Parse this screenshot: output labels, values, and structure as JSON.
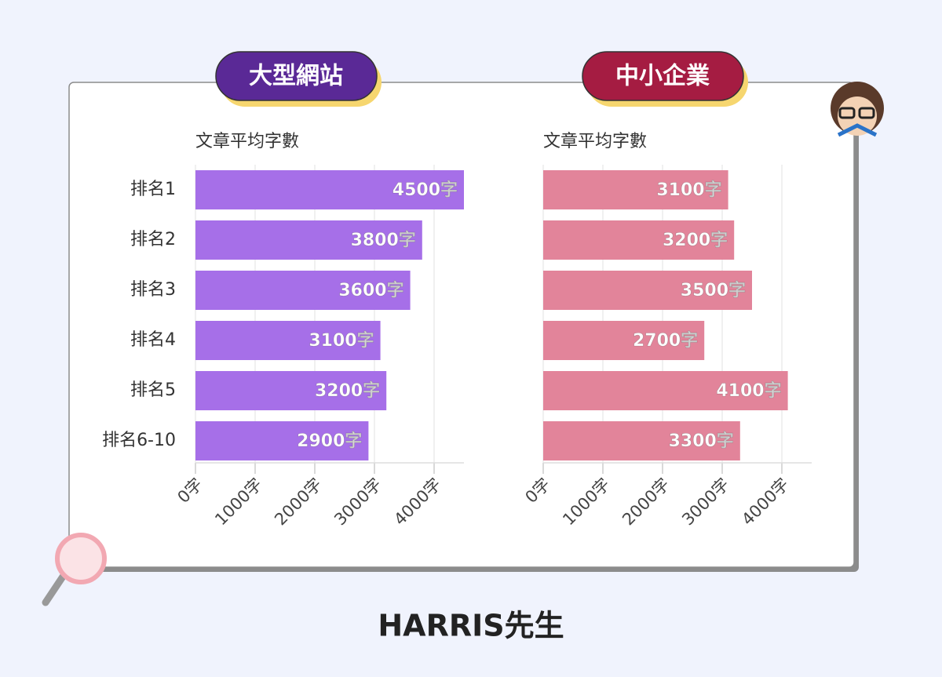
{
  "chart_data": [
    {
      "type": "bar",
      "orientation": "horizontal",
      "title": "大型網站",
      "subtitle": "文章平均字數",
      "categories": [
        "排名1",
        "排名2",
        "排名3",
        "排名4",
        "排名5",
        "排名6-10"
      ],
      "values": [
        4500,
        3800,
        3600,
        3100,
        3200,
        2900
      ],
      "value_labels": [
        "4500字",
        "3800字",
        "3600字",
        "3100字",
        "3200字",
        "2900字"
      ],
      "color": "#a66fe8",
      "title_color": "#5a2996",
      "xlim": [
        0,
        4500
      ],
      "xticks": [
        {
          "value": 0,
          "label": "0字"
        },
        {
          "value": 1000,
          "label": "1000字"
        },
        {
          "value": 2000,
          "label": "2000字"
        },
        {
          "value": 3000,
          "label": "3000字"
        },
        {
          "value": 4000,
          "label": "4000字"
        }
      ],
      "grid": true
    },
    {
      "type": "bar",
      "orientation": "horizontal",
      "title": "中小企業",
      "subtitle": "文章平均字數",
      "categories": [
        null,
        null,
        null,
        null,
        null,
        null
      ],
      "values": [
        3100,
        3200,
        3500,
        2700,
        4100,
        3300
      ],
      "value_labels": [
        "3100字",
        "3200字",
        "3500字",
        "2700字",
        "4100字",
        "3300字"
      ],
      "color": "#e2849a",
      "title_color": "#a51c42",
      "xlim": [
        0,
        4500
      ],
      "xticks": [
        {
          "value": 0,
          "label": "0字"
        },
        {
          "value": 1000,
          "label": "1000字"
        },
        {
          "value": 2000,
          "label": "2000字"
        },
        {
          "value": 3000,
          "label": "3000字"
        },
        {
          "value": 4000,
          "label": "4000字"
        }
      ],
      "grid": true
    }
  ],
  "footer": {
    "brand": "HARRIS先生"
  }
}
